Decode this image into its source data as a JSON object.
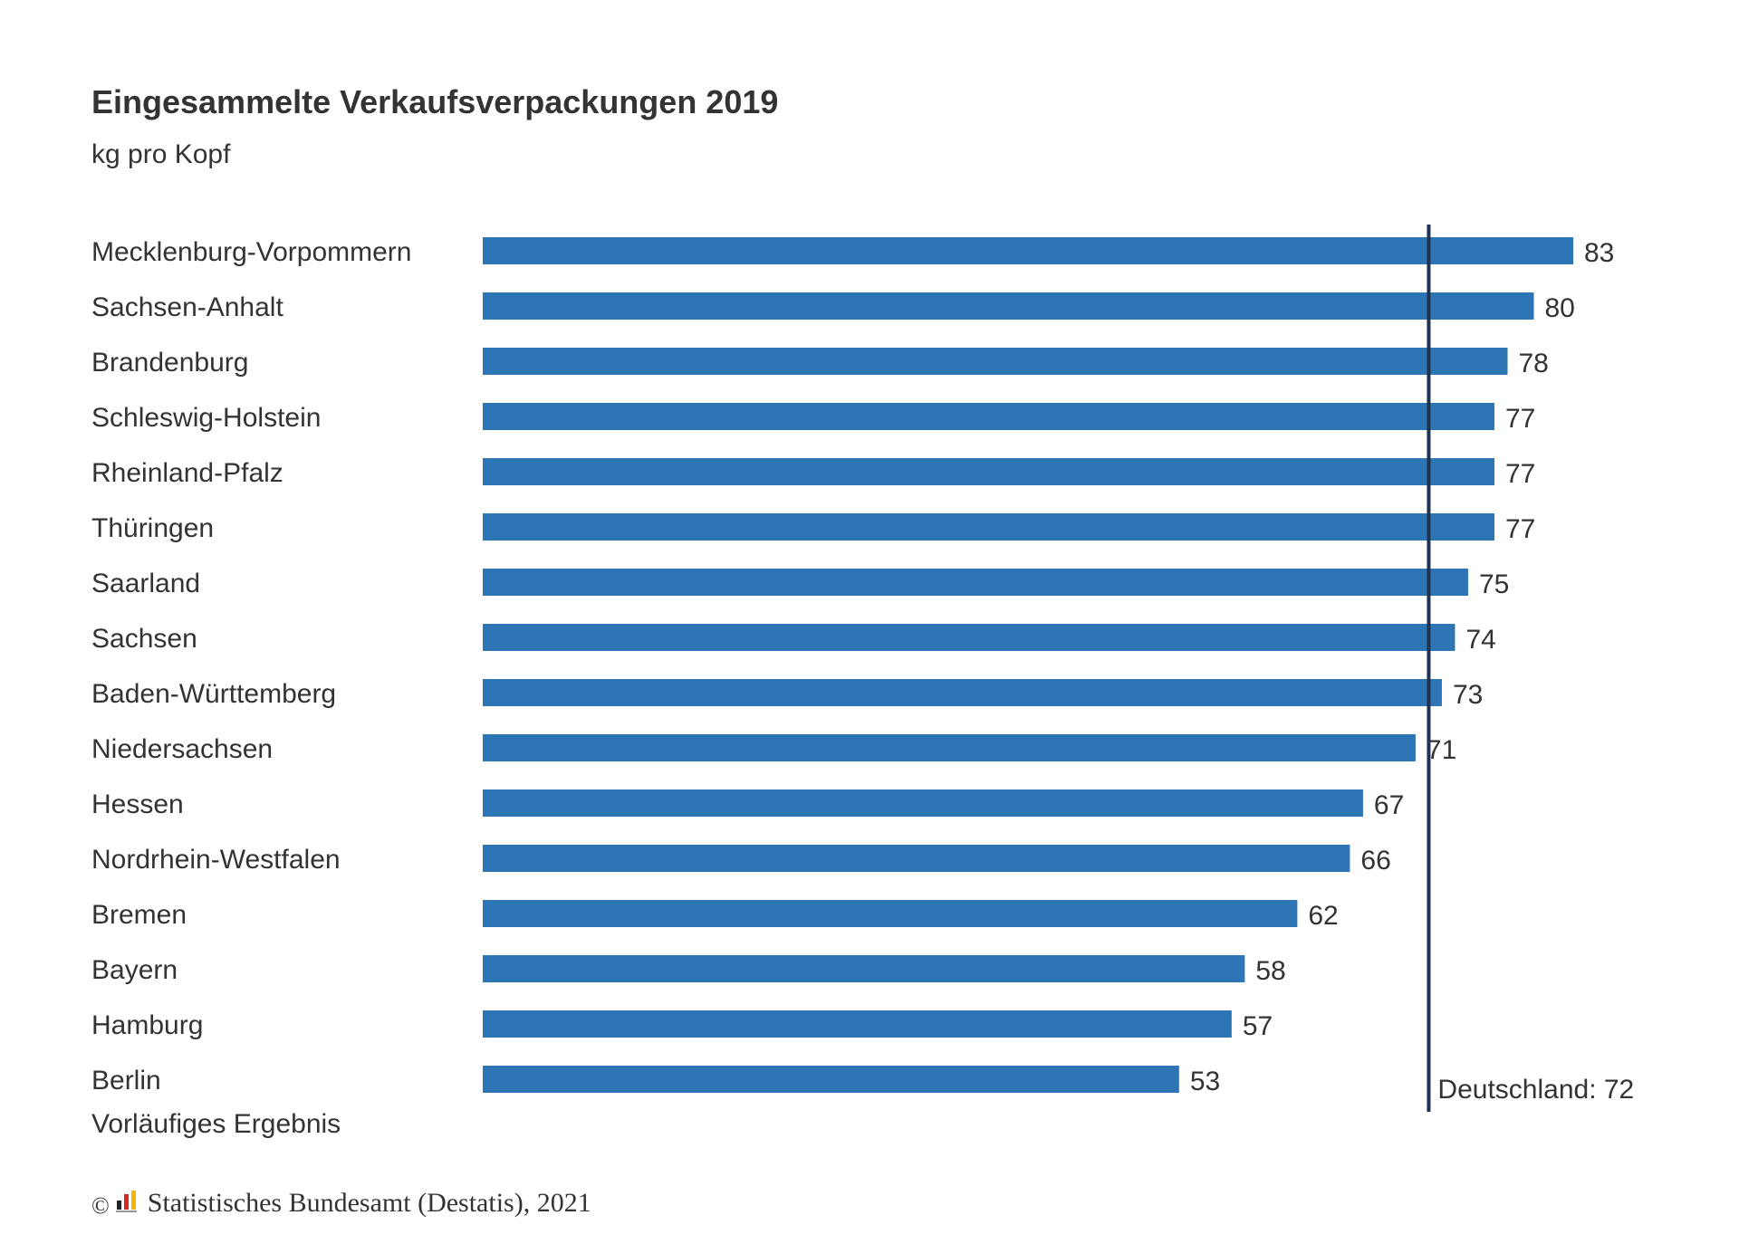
{
  "title": "Eingesammelte Verkaufsverpackungen 2019",
  "subtitle": "kg pro Kopf",
  "note": "Vorläufiges Ergebnis",
  "source": {
    "copyright": "©",
    "text": "Statistisches Bundesamt (Destatis), 2021",
    "logo_icon": "destatis-logo-icon"
  },
  "colors": {
    "bar": "#2e75b6",
    "reference_line": "#1f3350",
    "text": "#333333"
  },
  "chart_data": {
    "type": "bar",
    "orientation": "horizontal",
    "title": "Eingesammelte Verkaufsverpackungen 2019",
    "subtitle": "kg pro Kopf",
    "categories": [
      "Mecklenburg-Vorpommern",
      "Sachsen-Anhalt",
      "Brandenburg",
      "Schleswig-Holstein",
      "Rheinland-Pfalz",
      "Thüringen",
      "Saarland",
      "Sachsen",
      "Baden-Württemberg",
      "Niedersachsen",
      "Hessen",
      "Nordrhein-Westfalen",
      "Bremen",
      "Bayern",
      "Hamburg",
      "Berlin"
    ],
    "values": [
      83,
      80,
      78,
      77,
      77,
      77,
      75,
      74,
      73,
      71,
      67,
      66,
      62,
      58,
      57,
      53
    ],
    "value_labels": [
      "83",
      "80",
      "78",
      "77",
      "77",
      "77",
      "75",
      "74",
      "73",
      "71",
      "67",
      "66",
      "62",
      "58",
      "57",
      "53"
    ],
    "xlim": [
      0,
      83
    ],
    "reference_line": {
      "value": 72,
      "label": "Deutschland: 72"
    },
    "grid": false,
    "legend": "none",
    "note": "Vorläufiges Ergebnis"
  }
}
